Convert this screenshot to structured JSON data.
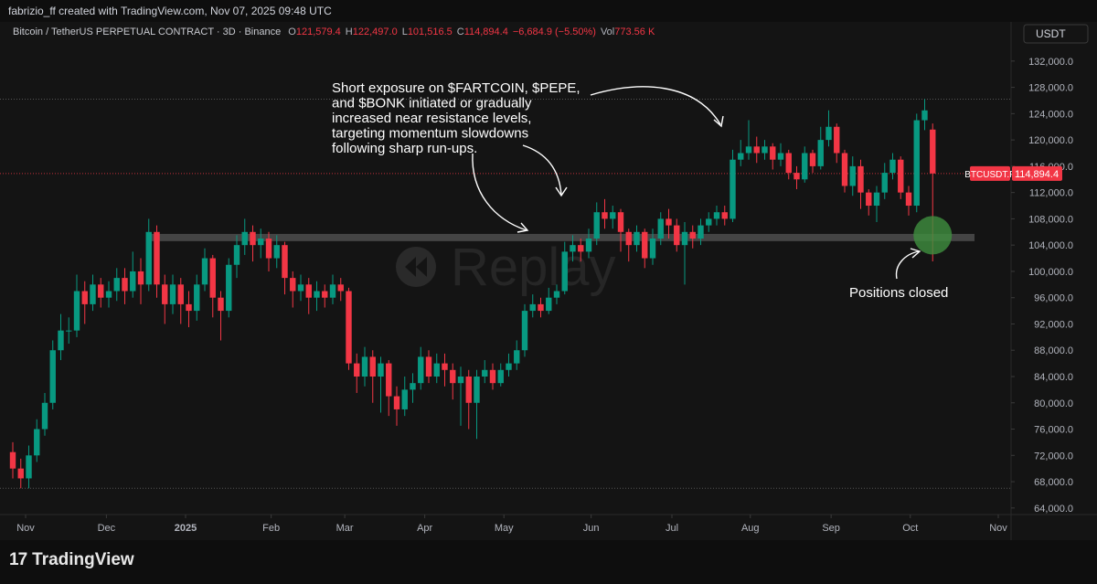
{
  "header": "fabrizio_ff created with TradingView.com, Nov 07, 2025 09:48 UTC",
  "footer_logo": "TradingView",
  "chart_data": {
    "type": "candlestick",
    "title": "Bitcoin / TetherUS PERPETUAL CONTRACT · 3D · Binance",
    "ohlc_legend": [
      {
        "key": "O",
        "value": "121,579.4"
      },
      {
        "key": "H",
        "value": "122,497.0"
      },
      {
        "key": "L",
        "value": "101,516.5"
      },
      {
        "key": "C",
        "value": "114,894.4"
      },
      {
        "key": "",
        "value": "−6,684.9 (−5.50%)"
      },
      {
        "key": "Vol",
        "value": "773.56 K"
      }
    ],
    "currency": "USDT",
    "price_label": "BTCUSDT.P",
    "last_price_label": "114,894.4",
    "watermark": "Replay",
    "up_color": "#089981",
    "down_color": "#f23645",
    "grid": false,
    "open": [
      72500,
      70000,
      68500,
      72000,
      76000,
      80000,
      88000,
      91000,
      91000,
      97000,
      95000,
      98000,
      96000,
      97000,
      99000,
      97000,
      100000,
      98000,
      106000,
      98000,
      95000,
      98000,
      95000,
      94000,
      98000,
      102000,
      96000,
      94000,
      101000,
      104000,
      106000,
      104000,
      105000,
      102000,
      104000,
      99000,
      97000,
      98000,
      96000,
      97000,
      96000,
      98000,
      97000,
      86000,
      84000,
      87000,
      84000,
      86000,
      81000,
      79000,
      82000,
      83000,
      87000,
      84000,
      86000,
      85000,
      83000,
      84000,
      80000,
      84000,
      85000,
      83000,
      85000,
      86000,
      88000,
      94000,
      95000,
      94000,
      96000,
      97000,
      103000,
      104000,
      103000,
      105000,
      109000,
      108000,
      109000,
      106000,
      104000,
      106000,
      102000,
      105000,
      108000,
      107000,
      104000,
      106000,
      105000,
      107000,
      108000,
      109000,
      108000,
      117000,
      118000,
      119000,
      118000,
      119000,
      117000,
      118000,
      115000,
      114000,
      118000,
      116000,
      120000,
      122000,
      118000,
      113000,
      116000,
      112000,
      110000,
      112000,
      115000,
      117000,
      112000,
      110000,
      123000,
      121579.4
    ],
    "high": [
      74000,
      71500,
      73500,
      77500,
      81500,
      89500,
      93500,
      93000,
      99500,
      98500,
      99500,
      99000,
      98500,
      100500,
      100500,
      103000,
      102000,
      108000,
      107000,
      99500,
      99500,
      99000,
      97000,
      99500,
      103500,
      102500,
      97000,
      102000,
      105500,
      108000,
      107000,
      106500,
      106000,
      105500,
      104500,
      100000,
      99500,
      99000,
      98500,
      98000,
      99500,
      99000,
      97500,
      87500,
      88500,
      88000,
      87000,
      86500,
      82500,
      84000,
      84500,
      88500,
      88000,
      87500,
      87500,
      86000,
      85500,
      85000,
      85000,
      86500,
      86000,
      86000,
      87500,
      89500,
      95000,
      96500,
      96000,
      97500,
      98000,
      104500,
      105500,
      105000,
      106500,
      110500,
      111000,
      110000,
      109500,
      106500,
      107000,
      106500,
      106500,
      109000,
      109500,
      108000,
      107500,
      107000,
      108000,
      109000,
      110000,
      110000,
      118500,
      120000,
      123000,
      120500,
      120000,
      119500,
      119500,
      118500,
      116000,
      119000,
      118500,
      122000,
      124500,
      122500,
      118500,
      117500,
      117000,
      112500,
      113000,
      116500,
      118000,
      117500,
      113000,
      124000,
      126200,
      122497
    ],
    "low": [
      68500,
      67000,
      67000,
      71000,
      75000,
      79000,
      86500,
      89000,
      90000,
      92000,
      94000,
      94500,
      94500,
      95500,
      95000,
      96000,
      95000,
      97000,
      96000,
      92000,
      93500,
      92000,
      91500,
      92500,
      97000,
      93000,
      89500,
      93000,
      99000,
      102500,
      101500,
      102000,
      100000,
      100500,
      96500,
      94500,
      95500,
      93500,
      94000,
      94500,
      95000,
      95500,
      85000,
      81500,
      82500,
      80000,
      78500,
      78000,
      76500,
      78000,
      80000,
      82000,
      83000,
      83000,
      82500,
      80500,
      76500,
      76000,
      74500,
      83000,
      82000,
      82500,
      84000,
      85000,
      87000,
      93000,
      93000,
      93500,
      95000,
      96500,
      101500,
      101500,
      102000,
      104000,
      106500,
      106500,
      103000,
      101500,
      103000,
      100500,
      101000,
      104000,
      105000,
      103000,
      98000,
      103500,
      104000,
      106000,
      107000,
      107000,
      107500,
      116000,
      117000,
      116500,
      117000,
      115500,
      116000,
      114000,
      112500,
      113500,
      115000,
      115500,
      119000,
      116500,
      112000,
      111500,
      109500,
      108500,
      107500,
      111000,
      114000,
      111000,
      108500,
      109000,
      121500,
      101516.5
    ],
    "close": [
      70000,
      68500,
      72000,
      76000,
      80000,
      88000,
      91000,
      91000,
      97000,
      95000,
      98000,
      96000,
      97000,
      99000,
      97000,
      100000,
      98000,
      106000,
      98000,
      95000,
      98000,
      95000,
      94000,
      98000,
      102000,
      96000,
      94000,
      101000,
      104000,
      106000,
      104000,
      105000,
      102000,
      104000,
      99000,
      97000,
      98000,
      96000,
      97000,
      96000,
      98000,
      97000,
      86000,
      84000,
      87000,
      84000,
      86000,
      81000,
      79000,
      82000,
      83000,
      87000,
      84000,
      86000,
      85000,
      83000,
      84000,
      80000,
      84000,
      85000,
      83000,
      85000,
      86000,
      88000,
      94000,
      95000,
      94000,
      96000,
      97000,
      103000,
      104000,
      103000,
      105000,
      109000,
      108000,
      109000,
      106000,
      104000,
      106000,
      102000,
      105000,
      108000,
      107000,
      104000,
      106000,
      105000,
      107000,
      108000,
      109000,
      108000,
      117000,
      118000,
      119000,
      118000,
      119000,
      117000,
      118000,
      115000,
      114000,
      118000,
      116000,
      120000,
      122000,
      118000,
      113000,
      116000,
      112000,
      110000,
      112000,
      115000,
      117000,
      112000,
      110000,
      123000,
      124500,
      114894.4
    ],
    "xticks": [
      {
        "value": 1.6,
        "label": "Nov"
      },
      {
        "value": 11.7,
        "label": "Dec"
      },
      {
        "value": 21.6,
        "label": "2025"
      },
      {
        "value": 32.3,
        "label": "Feb"
      },
      {
        "value": 41.5,
        "label": "Mar"
      },
      {
        "value": 51.5,
        "label": "Apr"
      },
      {
        "value": 61.4,
        "label": "May"
      },
      {
        "value": 72.3,
        "label": "Jun"
      },
      {
        "value": 82.4,
        "label": "Jul"
      },
      {
        "value": 92.2,
        "label": "Aug"
      },
      {
        "value": 102.3,
        "label": "Sep"
      },
      {
        "value": 112.2,
        "label": "Oct"
      },
      {
        "value": 123.2,
        "label": "Nov"
      }
    ],
    "ylim": [
      63000,
      137400
    ],
    "yticks": [
      {
        "value": 64000,
        "label": "64,000.0"
      },
      {
        "value": 68000,
        "label": "68,000.0"
      },
      {
        "value": 72000,
        "label": "72,000.0"
      },
      {
        "value": 76000,
        "label": "76,000.0"
      },
      {
        "value": 80000,
        "label": "80,000.0"
      },
      {
        "value": 84000,
        "label": "84,000.0"
      },
      {
        "value": 88000,
        "label": "88,000.0"
      },
      {
        "value": 92000,
        "label": "92,000.0"
      },
      {
        "value": 96000,
        "label": "96,000.0"
      },
      {
        "value": 100000,
        "label": "100,000.0"
      },
      {
        "value": 104000,
        "label": "104,000.0"
      },
      {
        "value": 108000,
        "label": "108,000.0"
      },
      {
        "value": 112000,
        "label": "112,000.0"
      },
      {
        "value": 116000,
        "label": "116,000.0"
      },
      {
        "value": 120000,
        "label": "120,000.0"
      },
      {
        "value": 124000,
        "label": "124,000.0"
      },
      {
        "value": 128000,
        "label": "128,000.0"
      },
      {
        "value": 132000,
        "label": "132,000.0"
      }
    ],
    "support_band": [
      104600,
      105700
    ],
    "closed_marker": 105500,
    "annotations": [
      {
        "lines": [
          "Short exposure on $FARTCOIN, $PEPE,",
          "and $BONK initiated or gradually",
          "increased near resistance levels,",
          "targeting momentum slowdowns",
          "following sharp run-ups."
        ]
      },
      {
        "lines": [
          "Positions closed"
        ]
      }
    ]
  }
}
